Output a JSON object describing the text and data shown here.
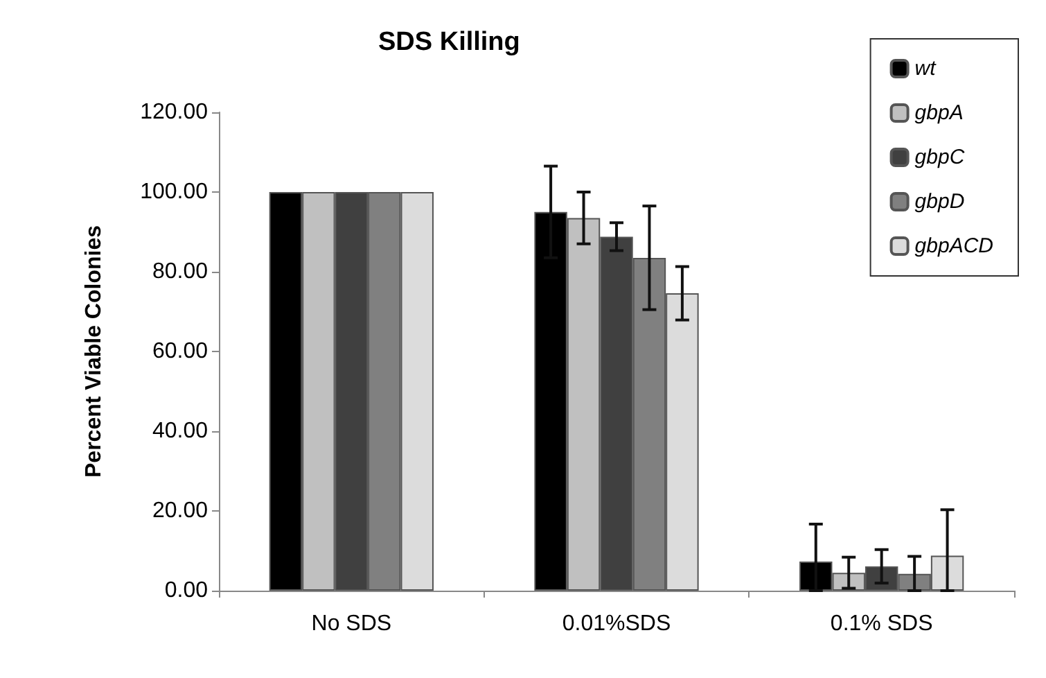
{
  "chart_data": {
    "type": "bar",
    "title": "SDS Killing",
    "ylabel": "Percent Viable Colonies",
    "categories": [
      "No SDS",
      "0.01%SDS",
      "0.1% SDS"
    ],
    "series": [
      {
        "name": "wt",
        "color": "#000000",
        "values": [
          100,
          95,
          7.3
        ],
        "errors": [
          null,
          11.5,
          [
            0,
            16.7
          ]
        ]
      },
      {
        "name": "gbpA",
        "color": "#c0c0c0",
        "values": [
          100,
          93.5,
          4.5
        ],
        "errors": [
          null,
          6.5,
          3.9
        ]
      },
      {
        "name": "gbpC",
        "color": "#404040",
        "values": [
          100,
          88.8,
          6.1
        ],
        "errors": [
          null,
          3.5,
          4.2
        ]
      },
      {
        "name": "gbpD",
        "color": "#808080",
        "values": [
          100,
          83.5,
          4.2
        ],
        "errors": [
          null,
          13,
          [
            0,
            8.6
          ]
        ]
      },
      {
        "name": "gbpACD",
        "color": "#dcdcdc",
        "values": [
          100,
          74.6,
          8.8
        ],
        "errors": [
          null,
          6.7,
          [
            0,
            20.3
          ]
        ]
      }
    ],
    "ylim": [
      0,
      120
    ],
    "yticks": [
      {
        "value": 0,
        "label": "0.00"
      },
      {
        "value": 20,
        "label": "20.00"
      },
      {
        "value": 40,
        "label": "40.00"
      },
      {
        "value": 60,
        "label": "60.00"
      },
      {
        "value": 80,
        "label": "80.00"
      },
      {
        "value": 100,
        "label": "100.00"
      },
      {
        "value": 120,
        "label": "120.00"
      }
    ],
    "grid": false,
    "legend": "top right"
  }
}
